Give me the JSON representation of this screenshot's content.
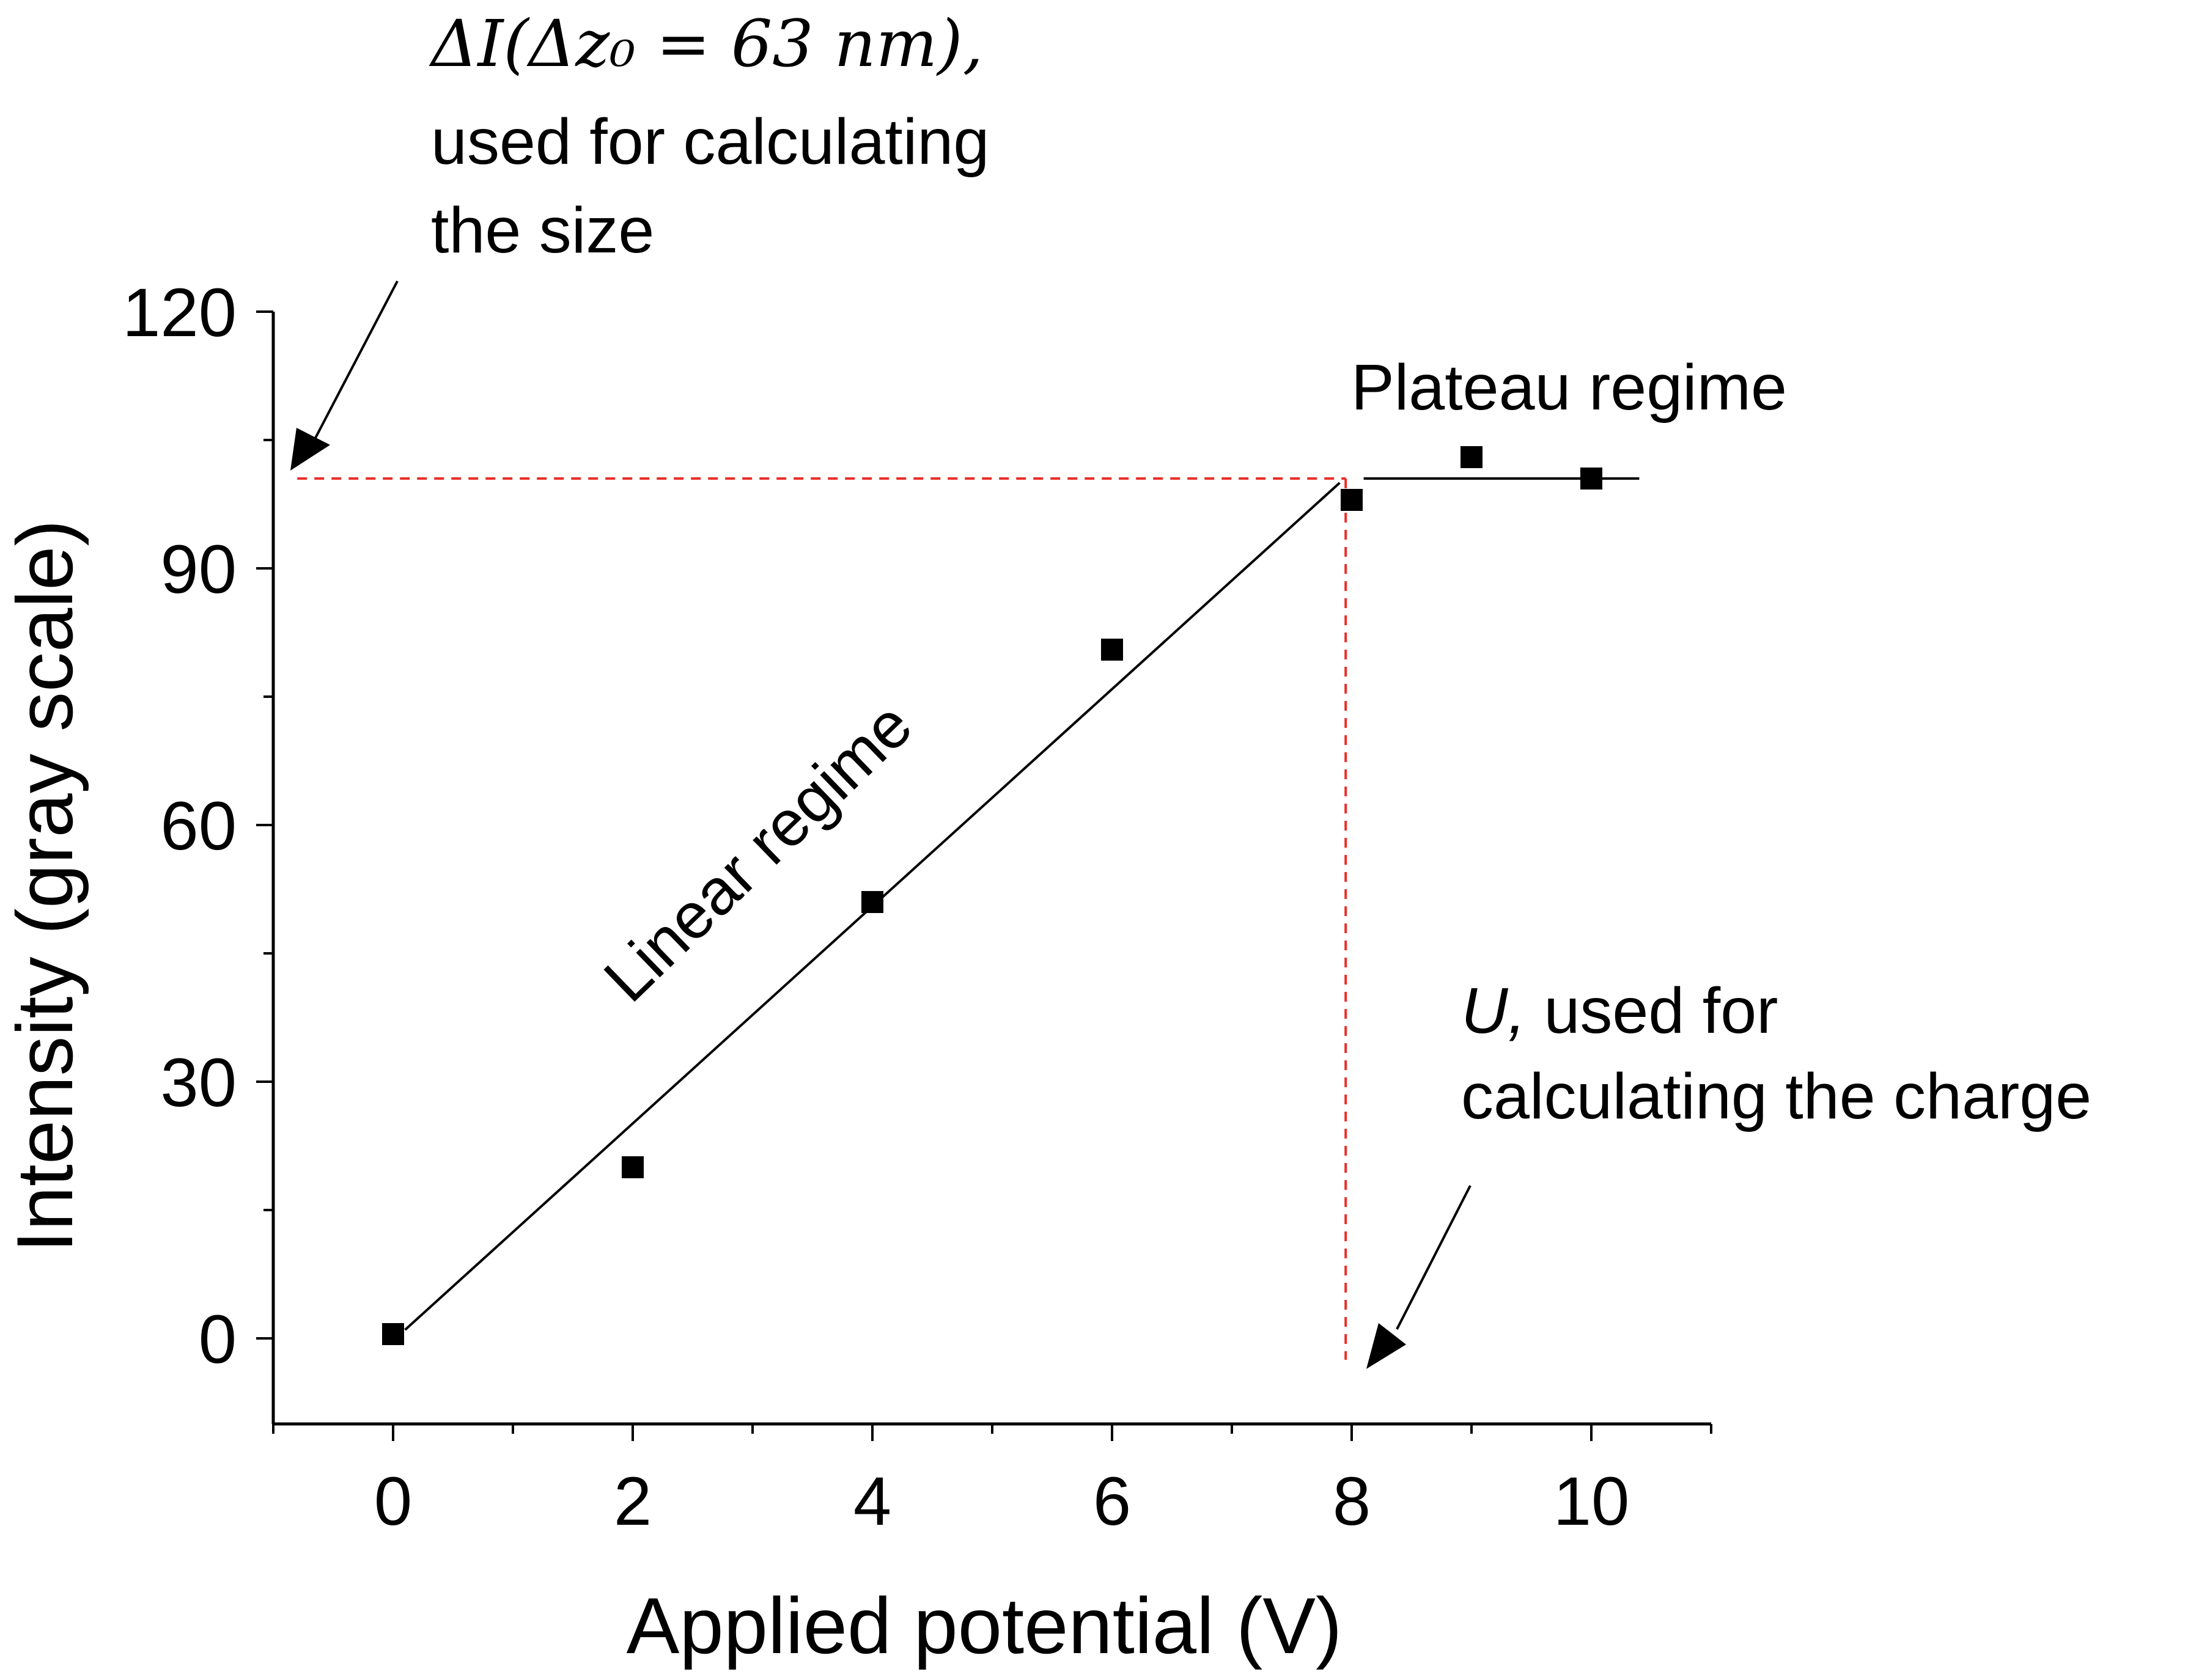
{
  "chart_data": {
    "type": "scatter",
    "xlabel": "Applied potential (V)",
    "ylabel": "Intensity (gray scale)",
    "xlim": [
      -1,
      11
    ],
    "ylim": [
      -10,
      120
    ],
    "x_ticks": [
      "0",
      "2",
      "4",
      "6",
      "8",
      "10"
    ],
    "y_ticks": [
      "0",
      "30",
      "60",
      "90",
      "120"
    ],
    "grid": false,
    "series": [
      {
        "marker": "square",
        "color": "#000000",
        "points": [
          {
            "x": 0,
            "y": 0.5
          },
          {
            "x": 2,
            "y": 20
          },
          {
            "x": 4,
            "y": 51
          },
          {
            "x": 6,
            "y": 80.5
          },
          {
            "x": 8,
            "y": 98
          },
          {
            "x": 9,
            "y": 103
          },
          {
            "x": 10,
            "y": 100.5
          }
        ]
      }
    ],
    "fit_lines": [
      {
        "label": "Linear regime",
        "from": {
          "x": 0.1,
          "y": 1
        },
        "to": {
          "x": 7.9,
          "y": 100
        }
      },
      {
        "label": "Plateau regime",
        "from": {
          "x": 8.1,
          "y": 100.5
        },
        "to": {
          "x": 10.4,
          "y": 100.5
        }
      }
    ],
    "reference_lines": {
      "color": "#e8302a",
      "horizontal_y": 100.5,
      "vertical_x": 7.95
    },
    "annotations": {
      "size_formula": "ΔI(Δz₀ = 63 nm),",
      "size_line2": "used for calculating",
      "size_line3": "the size",
      "charge_symbol": "U,",
      "charge_line1_rest": " used for",
      "charge_line2": "calculating the charge",
      "linear_label": "Linear regime",
      "plateau_label": "Plateau regime"
    }
  }
}
